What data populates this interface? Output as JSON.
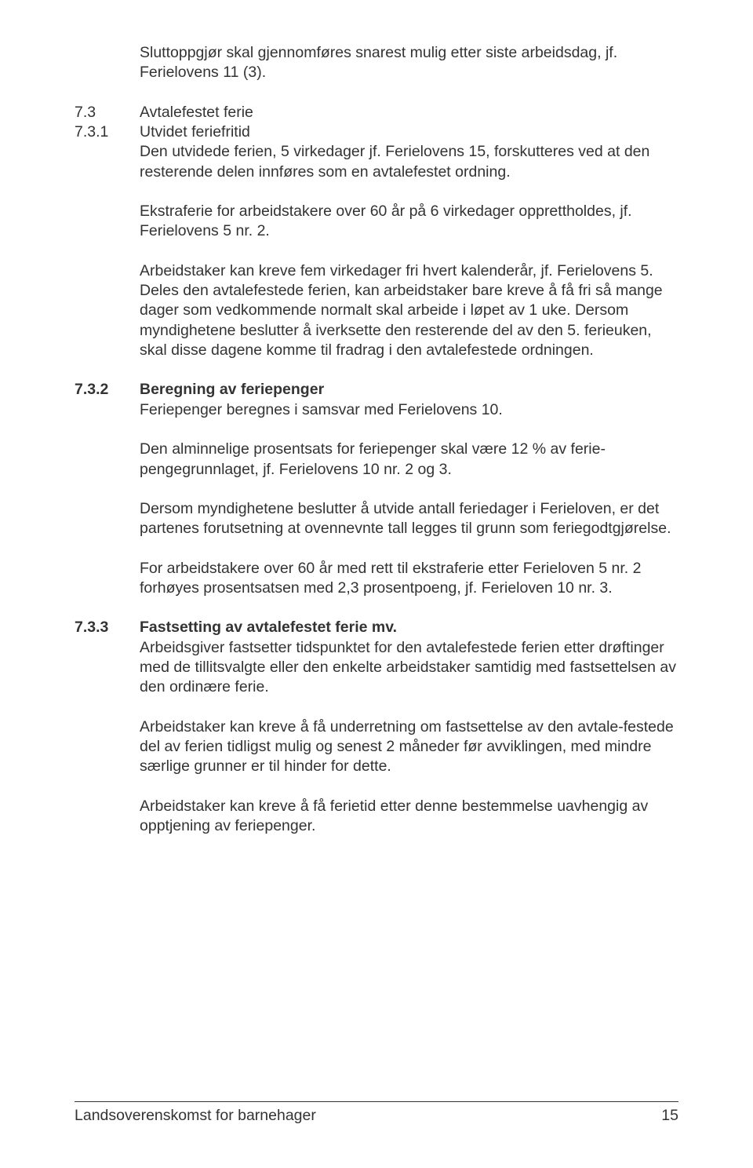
{
  "intro": {
    "p1": "Sluttoppgjør skal gjennomføres snarest mulig etter siste arbeidsdag, jf. Ferielovens 11 (3)."
  },
  "s73": {
    "num": "7.3",
    "heading": "Avtalefestet ferie"
  },
  "s731": {
    "num": "7.3.1",
    "heading": "Utvidet feriefritid",
    "p1": "Den utvidede ferien, 5 virkedager jf. Ferielovens 15, forskutteres ved at den resterende delen innføres som en avtalefestet ordning.",
    "p2": "Ekstraferie for arbeidstakere over 60 år på 6 virkedager opprettholdes, jf. Ferielovens 5 nr. 2.",
    "p3": "Arbeidstaker kan kreve fem virkedager fri hvert kalenderår, jf. Ferielovens 5. Deles den avtalefestede ferien, kan arbeidstaker bare kreve å få fri så mange dager som vedkommende normalt skal arbeide i løpet av 1 uke. Dersom myndighetene beslutter å iverksette den resterende del av den 5. ferieuken, skal disse dagene komme til fradrag i den avtalefestede ordningen."
  },
  "s732": {
    "num": "7.3.2",
    "heading": "Beregning av feriepenger",
    "p1": "Feriepenger beregnes i samsvar med Ferielovens 10.",
    "p2": "Den alminnelige prosentsats for feriepenger skal være 12 % av ferie-pengegrunnlaget, jf. Ferielovens 10 nr. 2 og 3.",
    "p3": "Dersom myndighetene beslutter å utvide antall feriedager i Ferieloven, er det partenes forutsetning at ovennevnte tall legges til grunn som feriegodtgjørelse.",
    "p4": "For arbeidstakere over 60 år med rett til ekstraferie etter Ferieloven 5 nr. 2 forhøyes prosentsatsen med 2,3 prosentpoeng, jf. Ferieloven 10 nr. 3."
  },
  "s733": {
    "num": "7.3.3",
    "heading": "Fastsetting av avtalefestet ferie mv.",
    "p1": "Arbeidsgiver fastsetter tidspunktet for den avtalefestede ferien etter drøftinger med de tillitsvalgte eller den enkelte arbeidstaker samtidig med fastsettelsen av den ordinære ferie.",
    "p2": "Arbeidstaker kan kreve å få underretning om fastsettelse av den avtale-festede del av ferien tidligst mulig og senest 2 måneder før avviklingen, med mindre særlige grunner er til hinder for dette.",
    "p3": "Arbeidstaker kan kreve å få ferietid etter denne bestemmelse uavhengig av opptjening av feriepenger."
  },
  "footer": {
    "title": "Landsoverenskomst for barnehager",
    "page": "15"
  }
}
